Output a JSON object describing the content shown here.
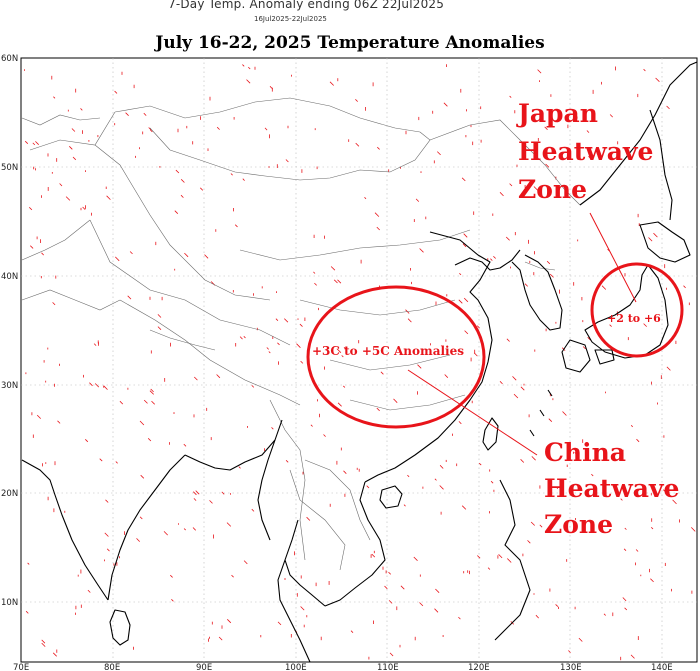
{
  "header": {
    "top_title": "7-Day Temp. Anomaly ending 06Z 22Jul2025",
    "date_range": "16Jul2025-22Jul2025",
    "main_title": "July 16-22, 2025 Temperature Anomalies"
  },
  "axes": {
    "lat_labels": [
      "60N",
      "50N",
      "40N",
      "30N",
      "20N",
      "10N"
    ],
    "lon_labels": [
      "70E",
      "80E",
      "90E",
      "100E",
      "110E",
      "120E",
      "130E",
      "140E"
    ]
  },
  "annotations": {
    "japan_title_lines": [
      "Japan",
      "Heatwave",
      "Zone"
    ],
    "japan_range": "+2 to +6",
    "china_title_lines": [
      "China",
      "Heatwave",
      "Zone"
    ],
    "china_range": "+3C to +5C Anomalies"
  },
  "colors": {
    "annotation": "#e8141a",
    "coast": "#000000",
    "borders": "#555555",
    "grid": "#b5b5b5"
  }
}
